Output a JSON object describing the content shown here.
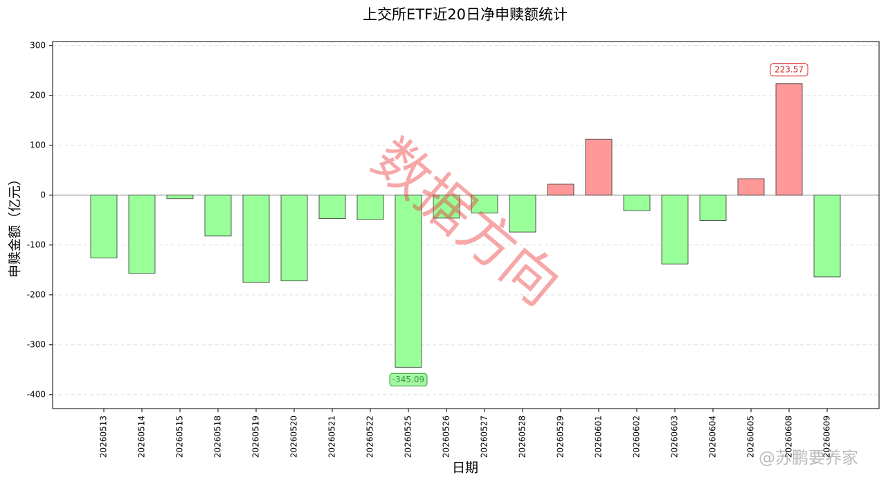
{
  "chart_data": {
    "type": "bar",
    "title": "上交所ETF近20日净申赎额统计",
    "x_label": "日期",
    "y_label": "申赎金额（亿元）",
    "categories": [
      "20260513",
      "20260514",
      "20260515",
      "20260518",
      "20260519",
      "20260520",
      "20260521",
      "20260522",
      "20260525",
      "20260526",
      "20260527",
      "20260528",
      "20260529",
      "20260601",
      "20260602",
      "20260603",
      "20260604",
      "20260605",
      "20260608",
      "20260609"
    ],
    "values": [
      -126,
      -157,
      -7,
      -82,
      -175,
      -172,
      -47,
      -49,
      -345.09,
      -46,
      -36,
      -74,
      22,
      112,
      -31,
      -138,
      -51,
      33,
      223.57,
      -164
    ],
    "value_labels": [
      null,
      null,
      null,
      null,
      null,
      null,
      null,
      null,
      "-345.09",
      null,
      null,
      null,
      null,
      null,
      null,
      null,
      null,
      null,
      "223.57",
      null
    ],
    "positive_color": "#ff9999",
    "negative_color": "#99ff99",
    "ylim": [
      -428,
      308
    ],
    "yticks": [
      -400,
      -300,
      -200,
      -100,
      0,
      100,
      200,
      300
    ],
    "grid": true,
    "watermark": "数据方向",
    "credit": "@苏鹏要养家"
  }
}
